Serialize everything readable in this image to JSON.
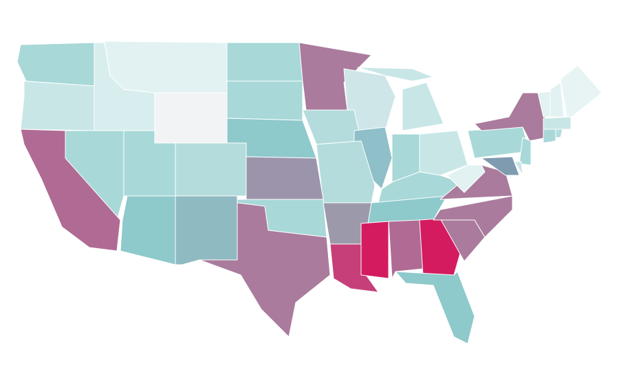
{
  "map": {
    "regions": [
      {
        "color": "#a8d8d8"
      },
      {
        "color": "#c8e6e6"
      },
      {
        "color": "#d8eeee"
      },
      {
        "color": "#e2f2f2"
      },
      {
        "color": "#f1f3f4"
      },
      {
        "color": "#a8d8d8"
      },
      {
        "color": "#a8d8d8"
      },
      {
        "color": "#8ec9cc"
      },
      {
        "color": "#aa7b9c"
      },
      {
        "color": "#cfe6e8"
      },
      {
        "color": "#c8e6e6"
      },
      {
        "color": "#c8e6e6"
      },
      {
        "color": "#b4dcdc"
      },
      {
        "color": "#8fbfc8"
      },
      {
        "color": "#a8d8d8"
      },
      {
        "color": "#c8e6e6"
      },
      {
        "color": "#a8d8d8"
      },
      {
        "color": "#8ec9cc"
      },
      {
        "color": "#b4dcdc"
      },
      {
        "color": "#9c94aa"
      },
      {
        "color": "#a8d8d8"
      },
      {
        "color": "#aa7b9c"
      },
      {
        "color": "#8fbac2"
      },
      {
        "color": "#8ec9cc"
      },
      {
        "color": "#b4dcdc"
      },
      {
        "color": "#a8d8d8"
      },
      {
        "color": "#a8d8d8"
      },
      {
        "color": "#b06b94"
      },
      {
        "color": "#9c9aaa"
      },
      {
        "color": "#c63f78"
      },
      {
        "color": "#d41b5f"
      },
      {
        "color": "#b06b94"
      },
      {
        "color": "#d41b5f"
      },
      {
        "color": "#8ec9cc"
      },
      {
        "color": "#aa7b9c"
      },
      {
        "color": "#aa7b9c"
      },
      {
        "color": "#aa7b9c"
      },
      {
        "color": "#e2f2f2"
      },
      {
        "color": "#a8d8d8"
      },
      {
        "color": "#aa7b9c"
      },
      {
        "color": "#a8d8d8"
      },
      {
        "color": "#7f9bb0"
      },
      {
        "color": "#c8e6e6"
      },
      {
        "color": "#e2f2f2"
      },
      {
        "color": "#e2f2f2"
      },
      {
        "color": "#e8f4f4"
      },
      {
        "color": "#c8e6e6"
      },
      {
        "color": "#a8d8d8"
      },
      {
        "color": "#b4dcdc"
      }
    ]
  }
}
